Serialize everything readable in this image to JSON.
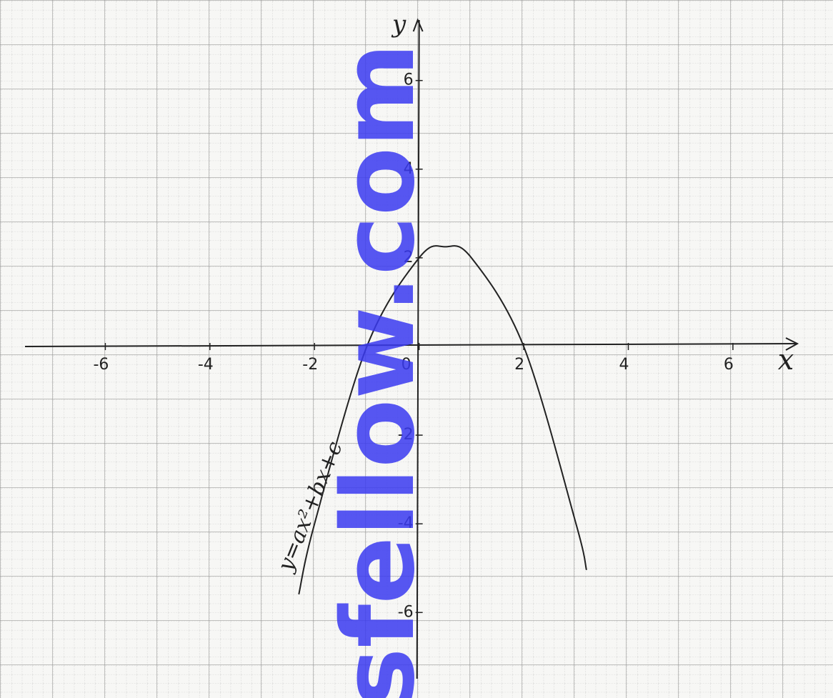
{
  "chart_data": {
    "type": "line",
    "x": [
      -2.3,
      -2,
      -1,
      0,
      0.5,
      1,
      2,
      3,
      3.2
    ],
    "series": [
      {
        "name": "y=ax²+bx+c",
        "color": "#222222",
        "values": [
          -5.59,
          -4,
          0,
          2,
          2.25,
          2,
          0,
          -4,
          -5.04
        ]
      }
    ],
    "xlabel": "x",
    "ylabel": "y",
    "xlim": [
      -8,
      7.9
    ],
    "ylim": [
      -7.8,
      7.8
    ],
    "xticks": [
      -6,
      -4,
      -2,
      0,
      2,
      4,
      6
    ],
    "yticks": [
      -6,
      -4,
      -2,
      2,
      4,
      6
    ],
    "grid": true,
    "watermark": "sfellow.com"
  }
}
